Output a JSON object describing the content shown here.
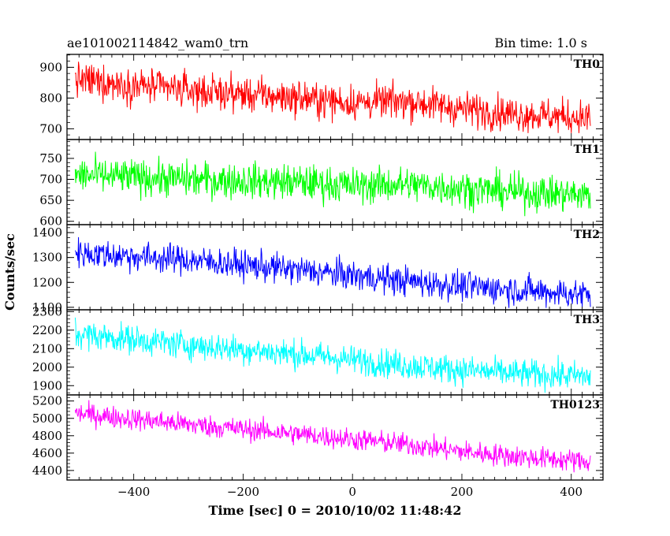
{
  "header": {
    "title": "ae101002114842_wam0_trn",
    "bin_time": "Bin time: 1.0 s"
  },
  "chart_data": {
    "type": "line",
    "title": "ae101002114842_wam0_trn",
    "xlabel": "Time [sec] 0 = 2010/10/02 11:48:42",
    "ylabel": "Counts/sec",
    "xlim": [
      -522,
      458
    ],
    "x_ticks": [
      -400,
      -200,
      0,
      200,
      400
    ],
    "x_tick_labels": [
      "−400",
      "−200",
      "0",
      "200",
      "400"
    ],
    "x_range": [
      -507,
      435
    ],
    "grid": false,
    "panels": [
      {
        "name": "TH0",
        "color": "#ff0000",
        "ylim": [
          665,
          942
        ],
        "y_ticks": [
          700,
          800,
          900
        ],
        "trend": [
          [
            -507,
            860
          ],
          [
            -300,
            825
          ],
          [
            -100,
            800
          ],
          [
            0,
            785
          ],
          [
            100,
            790
          ],
          [
            200,
            765
          ],
          [
            300,
            748
          ],
          [
            435,
            735
          ]
        ],
        "spread": 40,
        "range": [
          686,
          942
        ]
      },
      {
        "name": "TH1",
        "color": "#00ff00",
        "ylim": [
          592,
          795
        ],
        "y_ticks": [
          600,
          650,
          700,
          750
        ],
        "trend": [
          [
            -507,
            710
          ],
          [
            -300,
            700
          ],
          [
            -100,
            693
          ],
          [
            0,
            685
          ],
          [
            100,
            688
          ],
          [
            200,
            678
          ],
          [
            300,
            670
          ],
          [
            435,
            662
          ]
        ],
        "spread": 30,
        "range": [
          597,
          795
        ]
      },
      {
        "name": "TH2",
        "color": "#0000ff",
        "ylim": [
          1090,
          1432
        ],
        "y_ticks": [
          1100,
          1200,
          1300,
          1400
        ],
        "trend": [
          [
            -507,
            1320
          ],
          [
            -300,
            1290
          ],
          [
            -100,
            1250
          ],
          [
            0,
            1228
          ],
          [
            100,
            1205
          ],
          [
            200,
            1185
          ],
          [
            300,
            1170
          ],
          [
            435,
            1150
          ]
        ],
        "spread": 42,
        "range": [
          1090,
          1432
        ]
      },
      {
        "name": "TH3",
        "color": "#00ffff",
        "ylim": [
          1850,
          2310
        ],
        "y_ticks": [
          1900,
          2000,
          2100,
          2200,
          2300
        ],
        "trend": [
          [
            -507,
            2180
          ],
          [
            -300,
            2120
          ],
          [
            -100,
            2070
          ],
          [
            0,
            2040
          ],
          [
            100,
            2010
          ],
          [
            200,
            1985
          ],
          [
            300,
            1965
          ],
          [
            435,
            1950
          ]
        ],
        "spread": 55,
        "range": [
          1860,
          2310
        ]
      },
      {
        "name": "TH0123",
        "color": "#ff00ff",
        "ylim": [
          4290,
          5270
        ],
        "y_ticks": [
          4400,
          4600,
          4800,
          5000,
          5200
        ],
        "trend": [
          [
            -507,
            5060
          ],
          [
            -300,
            4930
          ],
          [
            -100,
            4820
          ],
          [
            0,
            4760
          ],
          [
            100,
            4700
          ],
          [
            200,
            4620
          ],
          [
            300,
            4560
          ],
          [
            435,
            4500
          ]
        ],
        "spread": 90,
        "range": [
          4340,
          5210
        ]
      }
    ]
  }
}
